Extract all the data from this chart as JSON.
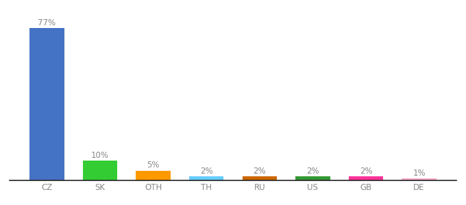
{
  "categories": [
    "CZ",
    "SK",
    "OTH",
    "TH",
    "RU",
    "US",
    "GB",
    "DE"
  ],
  "values": [
    77,
    10,
    5,
    2,
    2,
    2,
    2,
    1
  ],
  "bar_colors": [
    "#4472c4",
    "#33cc33",
    "#ff9900",
    "#66ccff",
    "#cc6600",
    "#339933",
    "#ff3399",
    "#ffaacc"
  ],
  "ylim": [
    0,
    84
  ],
  "background_color": "#ffffff",
  "bar_width": 0.65,
  "label_fontsize": 8.5,
  "tick_fontsize": 8.5,
  "label_color": "#888888"
}
